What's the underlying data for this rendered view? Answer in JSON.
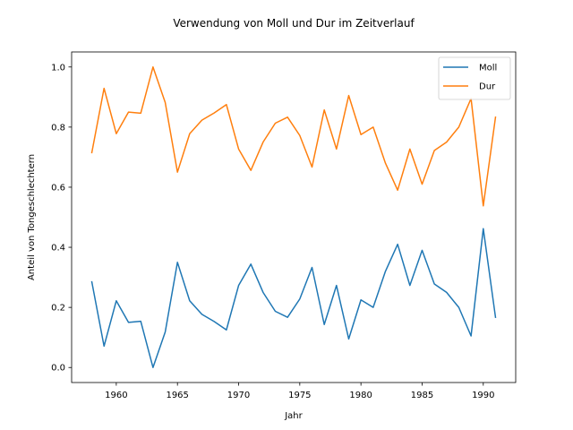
{
  "chart_data": {
    "type": "line",
    "title": "Verwendung von Moll und Dur im Zeitverlauf",
    "xlabel": "Jahr",
    "ylabel": "Anteil von Tongeschlechtern",
    "xlim": [
      1956.35,
      1992.65
    ],
    "ylim": [
      -0.05,
      1.05
    ],
    "xticks": [
      1960,
      1965,
      1970,
      1975,
      1980,
      1985,
      1990
    ],
    "yticks": [
      0.0,
      0.2,
      0.4,
      0.6,
      0.8,
      1.0
    ],
    "xtick_labels": [
      "1960",
      "1965",
      "1970",
      "1975",
      "1980",
      "1985",
      "1990"
    ],
    "ytick_labels": [
      "0.0",
      "0.2",
      "0.4",
      "0.6",
      "0.8",
      "1.0"
    ],
    "grid": false,
    "legend_position": "top-right",
    "x": [
      1958,
      1959,
      1960,
      1961,
      1962,
      1963,
      1964,
      1965,
      1966,
      1967,
      1968,
      1969,
      1970,
      1971,
      1972,
      1973,
      1974,
      1975,
      1976,
      1977,
      1978,
      1979,
      1980,
      1981,
      1982,
      1983,
      1984,
      1985,
      1986,
      1987,
      1988,
      1989,
      1990,
      1991
    ],
    "series": [
      {
        "name": "Moll",
        "color": "#1f77b4",
        "values": [
          0.285,
          0.071,
          0.222,
          0.15,
          0.154,
          0.0,
          0.118,
          0.35,
          0.222,
          0.177,
          0.153,
          0.125,
          0.273,
          0.344,
          0.25,
          0.187,
          0.167,
          0.228,
          0.333,
          0.143,
          0.273,
          0.095,
          0.225,
          0.2,
          0.32,
          0.41,
          0.273,
          0.39,
          0.278,
          0.25,
          0.2,
          0.105,
          0.462,
          0.167
        ]
      },
      {
        "name": "Dur",
        "color": "#ff7f0e",
        "values": [
          0.715,
          0.929,
          0.778,
          0.85,
          0.846,
          1.0,
          0.882,
          0.65,
          0.778,
          0.823,
          0.847,
          0.875,
          0.727,
          0.656,
          0.75,
          0.813,
          0.833,
          0.772,
          0.667,
          0.857,
          0.727,
          0.905,
          0.775,
          0.8,
          0.68,
          0.59,
          0.727,
          0.61,
          0.722,
          0.75,
          0.8,
          0.895,
          0.538,
          0.833
        ]
      }
    ]
  }
}
